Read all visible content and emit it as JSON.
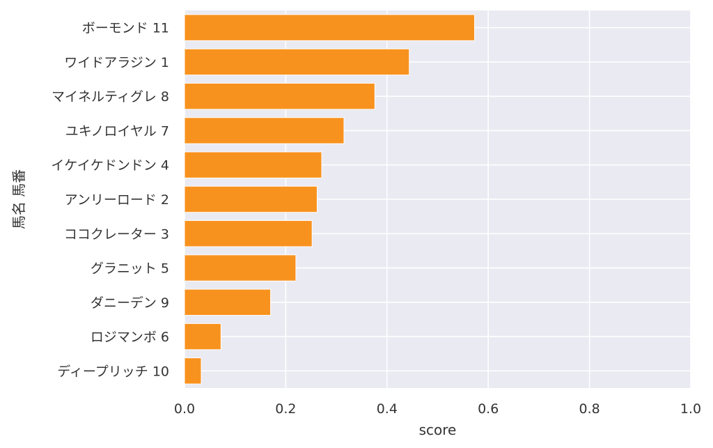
{
  "chart_data": {
    "type": "bar",
    "orientation": "horizontal",
    "categories": [
      "ボーモンド 11",
      "ワイドアラジン 1",
      "マイネルティグレ 8",
      "ユキノロイヤル 7",
      "イケイケドンドン 4",
      "アンリーロード 2",
      "ココクレーター 3",
      "グラニット 5",
      "ダニーデン 9",
      "ロジマンボ 6",
      "ディープリッチ 10"
    ],
    "values": [
      0.573,
      0.444,
      0.376,
      0.315,
      0.271,
      0.262,
      0.252,
      0.22,
      0.17,
      0.072,
      0.033
    ],
    "xlabel": "score",
    "ylabel": "馬名 馬番",
    "xlim": [
      0,
      1.0
    ],
    "xticks": [
      "0.0",
      "0.2",
      "0.4",
      "0.6",
      "0.8",
      "1.0"
    ],
    "grid": true,
    "colors": {
      "bar": "#f8921e",
      "background": "#eaeaf2",
      "grid": "#ffffff"
    }
  }
}
